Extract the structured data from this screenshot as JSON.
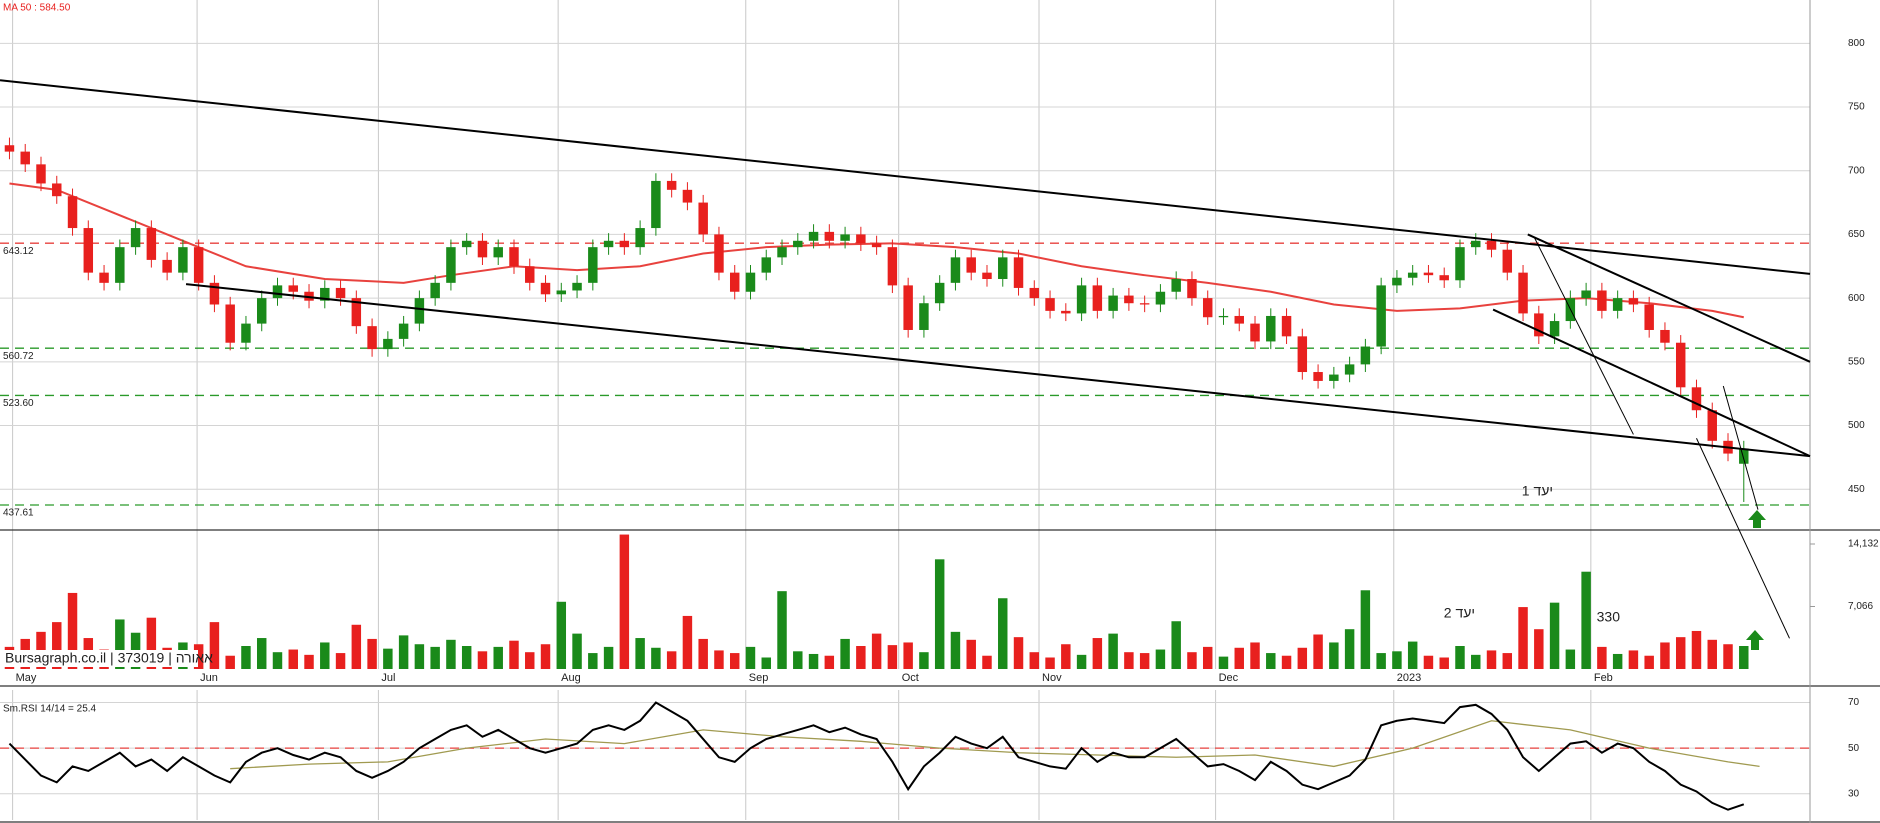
{
  "chart_data": [
    {
      "type": "candlestick",
      "title": "MA 50 : 584.50",
      "up_color": "#1a8a1a",
      "down_color": "#e8201e",
      "open": [
        720,
        715,
        705,
        690,
        680,
        655,
        620,
        612,
        640,
        655,
        630,
        620,
        640,
        612,
        595,
        565,
        580,
        600,
        610,
        605,
        598,
        608,
        600,
        578,
        560,
        568,
        580,
        600,
        612,
        640,
        645,
        632,
        640,
        625,
        612,
        603,
        606,
        612,
        640,
        645,
        640,
        655,
        692,
        685,
        675,
        650,
        620,
        605,
        620,
        632,
        640,
        645,
        652,
        645,
        650,
        643,
        640,
        610,
        575,
        596,
        612,
        632,
        620,
        615,
        632,
        608,
        600,
        590,
        588,
        610,
        590,
        602,
        596,
        595,
        605,
        615,
        600,
        585,
        586,
        580,
        566,
        586,
        570,
        542,
        535,
        540,
        548,
        562,
        610,
        616,
        620,
        618,
        614,
        640,
        645,
        638,
        620,
        588,
        570,
        582,
        600,
        606,
        590,
        600,
        595,
        575,
        565,
        530,
        512,
        488,
        470
      ],
      "high": [
        726,
        721,
        711,
        696,
        686,
        661,
        626,
        646,
        661,
        661,
        636,
        646,
        646,
        618,
        601,
        586,
        606,
        616,
        616,
        611,
        614,
        614,
        606,
        584,
        574,
        586,
        606,
        618,
        646,
        651,
        651,
        646,
        646,
        631,
        618,
        612,
        618,
        646,
        651,
        651,
        661,
        698,
        698,
        691,
        681,
        656,
        626,
        626,
        638,
        646,
        651,
        658,
        658,
        656,
        656,
        649,
        646,
        616,
        602,
        618,
        638,
        638,
        626,
        638,
        638,
        614,
        606,
        596,
        616,
        616,
        608,
        608,
        602,
        611,
        621,
        621,
        606,
        592,
        592,
        586,
        592,
        592,
        576,
        548,
        546,
        554,
        568,
        616,
        622,
        626,
        626,
        624,
        646,
        651,
        651,
        644,
        626,
        594,
        588,
        606,
        612,
        612,
        606,
        606,
        601,
        581,
        571,
        536,
        518,
        494,
        488
      ],
      "low": [
        709,
        699,
        684,
        674,
        649,
        614,
        606,
        606,
        634,
        624,
        614,
        614,
        606,
        589,
        559,
        559,
        574,
        594,
        599,
        592,
        592,
        594,
        572,
        554,
        554,
        562,
        574,
        594,
        606,
        634,
        626,
        626,
        619,
        606,
        597,
        597,
        600,
        606,
        634,
        634,
        634,
        649,
        679,
        669,
        644,
        614,
        599,
        599,
        614,
        626,
        634,
        639,
        639,
        639,
        637,
        634,
        604,
        569,
        569,
        590,
        606,
        614,
        609,
        609,
        602,
        594,
        584,
        582,
        582,
        584,
        584,
        590,
        589,
        589,
        599,
        594,
        579,
        579,
        574,
        560,
        560,
        564,
        536,
        529,
        529,
        534,
        542,
        556,
        604,
        610,
        612,
        608,
        608,
        634,
        632,
        614,
        582,
        564,
        564,
        576,
        594,
        584,
        584,
        589,
        569,
        559,
        524,
        506,
        482,
        472,
        440
      ],
      "close": [
        715,
        705,
        690,
        680,
        655,
        620,
        612,
        640,
        655,
        630,
        620,
        640,
        612,
        595,
        565,
        580,
        600,
        610,
        605,
        598,
        608,
        600,
        578,
        560,
        568,
        580,
        600,
        612,
        640,
        645,
        632,
        640,
        625,
        612,
        603,
        606,
        612,
        640,
        645,
        640,
        655,
        692,
        685,
        675,
        650,
        620,
        605,
        620,
        632,
        640,
        645,
        652,
        645,
        650,
        643,
        640,
        610,
        575,
        596,
        612,
        632,
        620,
        615,
        632,
        608,
        600,
        590,
        588,
        610,
        590,
        602,
        596,
        595,
        605,
        615,
        600,
        585,
        586,
        580,
        566,
        586,
        570,
        542,
        535,
        540,
        548,
        562,
        610,
        616,
        620,
        618,
        614,
        640,
        645,
        638,
        620,
        588,
        570,
        582,
        600,
        606,
        590,
        600,
        595,
        575,
        565,
        530,
        512,
        488,
        478,
        482
      ],
      "ylim": [
        418,
        834
      ],
      "yticks": [
        450,
        500,
        550,
        600,
        650,
        700,
        750,
        800
      ],
      "grid": true,
      "overlay": {
        "name": "MA 50",
        "color": "#e8423e",
        "x": [
          0,
          3,
          6,
          9,
          12,
          15,
          20,
          25,
          28,
          32,
          36,
          40,
          44,
          48,
          52,
          56,
          60,
          64,
          68,
          72,
          76,
          80,
          84,
          88,
          92,
          96,
          100,
          104,
          108,
          110
        ],
        "values": [
          690,
          685,
          670,
          655,
          640,
          625,
          615,
          612,
          618,
          625,
          622,
          625,
          635,
          640,
          642,
          643,
          640,
          635,
          625,
          618,
          612,
          605,
          595,
          590,
          592,
          598,
          600,
          596,
          590,
          585
        ]
      },
      "hlines": [
        {
          "value": 643.12,
          "color": "#e8423e"
        },
        {
          "value": 560.72,
          "color": "#2a9a2a"
        },
        {
          "value": 523.6,
          "label": "523.60",
          "color": "#2a9a2a"
        },
        {
          "value": 437.61,
          "color": "#2a9a2a"
        }
      ],
      "trendlines": [
        {
          "x": [
            -0.6,
            114.2
          ],
          "values": [
            771,
            619
          ]
        },
        {
          "x": [
            11.2,
            114.2
          ],
          "values": [
            611,
            476
          ]
        },
        {
          "x": [
            96.3,
            114.2
          ],
          "values": [
            650,
            550
          ]
        },
        {
          "x": [
            94.1,
            114.2
          ],
          "values": [
            591,
            476
          ]
        },
        {
          "x": [
            96.7,
            103
          ],
          "values": [
            648,
            493
          ]
        },
        {
          "x": [
            107,
            112.9
          ],
          "values": [
            490,
            333
          ]
        },
        {
          "x": [
            108.7,
            110.9
          ],
          "values": [
            531,
            434
          ]
        }
      ],
      "annotations": [
        "יעד 1"
      ]
    },
    {
      "type": "bar",
      "title": "Bursagraph.co.il | 373019 | אאורה",
      "up_color": "#1a8a1a",
      "down_color": "#e8201e",
      "values": [
        2500,
        3400,
        4200,
        5300,
        8600,
        3500,
        2200,
        5600,
        4100,
        5800,
        2400,
        3000,
        2800,
        5300,
        1500,
        2600,
        3500,
        1900,
        2200,
        1600,
        3000,
        1800,
        5000,
        3400,
        2300,
        3800,
        2800,
        2500,
        3300,
        2600,
        2000,
        2500,
        3200,
        1900,
        2800,
        7600,
        4000,
        1800,
        2500,
        15200,
        3500,
        2400,
        2000,
        6000,
        3400,
        2100,
        1800,
        2500,
        1300,
        8800,
        2000,
        1700,
        1500,
        3400,
        2600,
        4000,
        2700,
        3000,
        1900,
        12400,
        4200,
        3300,
        1500,
        8000,
        3600,
        1900,
        1300,
        2800,
        1600,
        3500,
        4000,
        1900,
        1800,
        2200,
        5400,
        1900,
        2500,
        1400,
        2400,
        3000,
        1800,
        1500,
        2400,
        3900,
        3000,
        4500,
        8900,
        1800,
        2000,
        3100,
        1500,
        1300,
        2600,
        1600,
        2100,
        1800,
        7000,
        4500,
        7500,
        2200,
        11000,
        2500,
        1700,
        2100,
        1500,
        3000,
        3600,
        4300,
        3300,
        2800,
        2600
      ],
      "ylim": [
        0,
        15715
      ],
      "yticks": [
        {
          "value": 7066,
          "label": "7,066"
        },
        {
          "value": 14132,
          "label": "14,132"
        }
      ],
      "xlim": [
        -0.6,
        114.2
      ],
      "xticks": [
        {
          "value": 0.2,
          "label": "May"
        },
        {
          "value": 11.9,
          "label": "Jun"
        },
        {
          "value": 23.4,
          "label": "Jul"
        },
        {
          "value": 34.8,
          "label": "Aug"
        },
        {
          "value": 46.7,
          "label": "Sep"
        },
        {
          "value": 56.4,
          "label": "Oct"
        },
        {
          "value": 65.3,
          "label": "Nov"
        },
        {
          "value": 76.5,
          "label": "Dec"
        },
        {
          "value": 87.8,
          "label": "2023"
        },
        {
          "value": 100.3,
          "label": "Feb"
        }
      ],
      "annotations": [
        "יעד 2",
        "330"
      ]
    },
    {
      "type": "line",
      "title": "Sm.RSI 14/14 = 25.4",
      "color": "#000000",
      "values": [
        52,
        45,
        38,
        35,
        42,
        40,
        44,
        48,
        42,
        45,
        40,
        46,
        42,
        38,
        35,
        44,
        48,
        50,
        47,
        45,
        48,
        46,
        40,
        37,
        40,
        44,
        50,
        54,
        58,
        60,
        55,
        58,
        54,
        50,
        48,
        50,
        52,
        58,
        60,
        58,
        62,
        70,
        66,
        62,
        54,
        46,
        44,
        50,
        54,
        56,
        58,
        60,
        57,
        59,
        56,
        54,
        44,
        32,
        42,
        48,
        55,
        52,
        50,
        55,
        46,
        44,
        42,
        41,
        50,
        44,
        48,
        46,
        46,
        50,
        54,
        48,
        42,
        43,
        40,
        36,
        44,
        40,
        34,
        32,
        35,
        38,
        45,
        60,
        62,
        63,
        62,
        61,
        68,
        69,
        65,
        58,
        46,
        40,
        46,
        52,
        53,
        48,
        52,
        50,
        44,
        40,
        34,
        31,
        26,
        23,
        25.4
      ],
      "overlay": {
        "color": "#a09a50",
        "x": [
          14,
          19,
          24,
          29,
          34,
          39,
          44,
          49,
          54,
          59,
          64,
          69,
          74,
          79,
          84,
          89,
          94,
          99,
          104,
          109,
          111
        ],
        "values": [
          41,
          43,
          44,
          50,
          54,
          52,
          58,
          55,
          53,
          50,
          48,
          47,
          46,
          47,
          42,
          50,
          62,
          58,
          50,
          44,
          42
        ]
      },
      "ylim": [
        18.5,
        75.5
      ],
      "yticks": [
        30,
        50,
        70
      ],
      "hlines": [
        {
          "value": 50,
          "color": "#e8423e"
        }
      ]
    }
  ]
}
